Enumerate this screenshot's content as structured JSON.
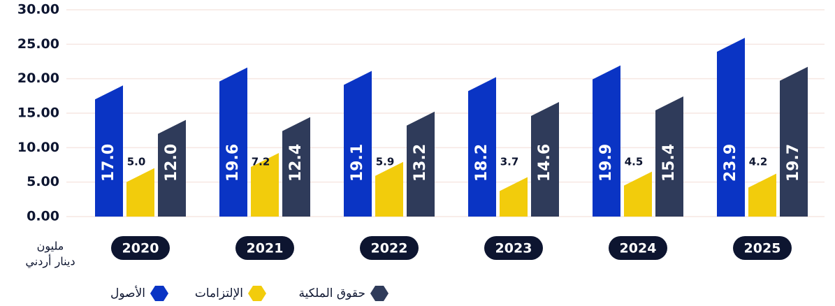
{
  "chart_data": {
    "type": "bar",
    "categories": [
      "2020",
      "2021",
      "2022",
      "2023",
      "2024",
      "2025"
    ],
    "series": [
      {
        "name": "الأصول",
        "color": "#0a34c4",
        "values": [
          17.0,
          19.6,
          19.1,
          18.2,
          19.9,
          23.9
        ],
        "value_labels": [
          "17.0",
          "19.6",
          "19.1",
          "18.2",
          "19.9",
          "23.9"
        ]
      },
      {
        "name": "الإلتزامات",
        "color": "#f2cc0c",
        "values": [
          5.0,
          7.2,
          5.9,
          3.7,
          4.5,
          4.2
        ],
        "value_labels": [
          "5.0",
          "7.2",
          "5.9",
          "3.7",
          "4.5",
          "4.2"
        ]
      },
      {
        "name": "حقوق الملكية",
        "color": "#2f3b5a",
        "values": [
          12.0,
          12.4,
          13.2,
          14.6,
          15.4,
          19.7
        ],
        "value_labels": [
          "12.0",
          "12.4",
          "13.2",
          "14.6",
          "15.4",
          "19.7"
        ]
      }
    ],
    "unit_label": [
      "مليون",
      "دينار أردني"
    ],
    "ylim": [
      0,
      30
    ],
    "yticks": [
      {
        "value": 0,
        "label": "0.00"
      },
      {
        "value": 5,
        "label": "5.00"
      },
      {
        "value": 10,
        "label": "10.00"
      },
      {
        "value": 15,
        "label": "15.00"
      },
      {
        "value": 20,
        "label": "20.00"
      },
      {
        "value": 25,
        "label": "25.00"
      },
      {
        "value": 30,
        "label": "30.00"
      }
    ],
    "grid": true
  }
}
